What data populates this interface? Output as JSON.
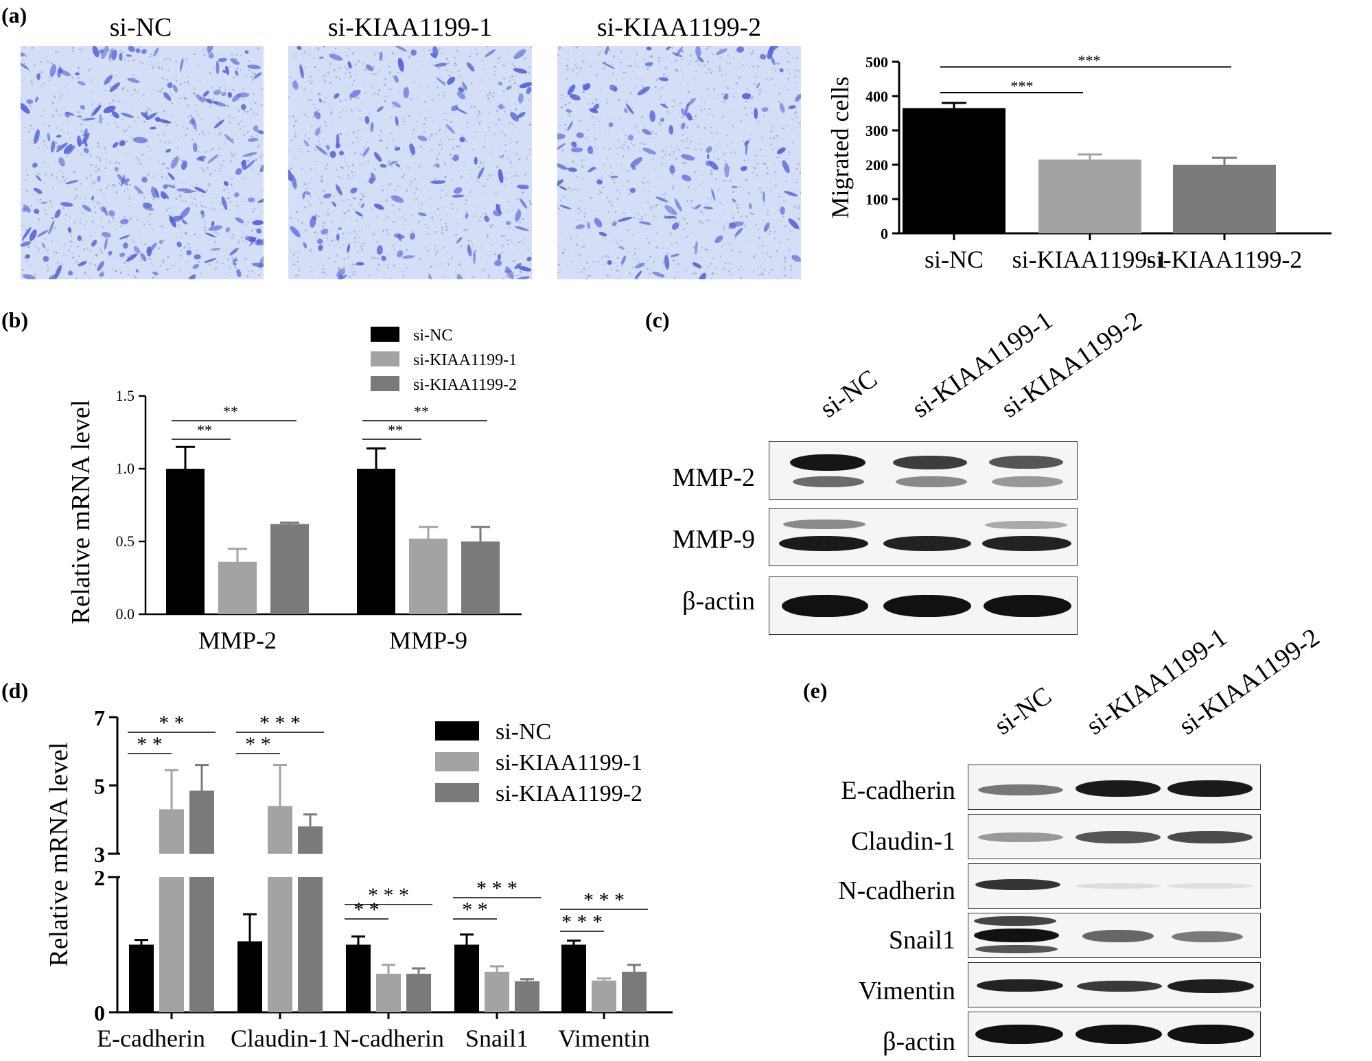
{
  "panel_labels": {
    "a": "(a)",
    "b": "(b)",
    "c": "(c)",
    "d": "(d)",
    "e": "(e)"
  },
  "groups": [
    "si-NC",
    "si-KIAA1199-1",
    "si-KIAA1199-2"
  ],
  "colors": {
    "si-NC": "#000000",
    "si-KIAA1199-1": "#a3a3a3",
    "si-KIAA1199-2": "#7a7a7a",
    "stain": "#5565d8"
  },
  "panel_a_images": [
    "si-NC",
    "si-KIAA1199-1",
    "si-KIAA1199-2"
  ],
  "chart_data": [
    {
      "id": "a",
      "type": "bar",
      "categories": [
        "si-NC",
        "si-KIAA1199-1",
        "si-KIAA1199-2"
      ],
      "values": [
        365,
        215,
        200
      ],
      "errors": [
        15,
        15,
        20
      ],
      "ylabel": "Migrated cells",
      "ylim": [
        0,
        500
      ],
      "yticks": [
        "0",
        "100",
        "200",
        "300",
        "400",
        "500"
      ],
      "significance": [
        {
          "from": "si-NC",
          "to": "si-KIAA1199-1",
          "label": "***"
        },
        {
          "from": "si-NC",
          "to": "si-KIAA1199-2",
          "label": "***"
        }
      ]
    },
    {
      "id": "b",
      "type": "bar",
      "categories": [
        "MMP-2",
        "MMP-9"
      ],
      "series": [
        {
          "name": "si-NC",
          "values": [
            1.0,
            1.0
          ],
          "errors": [
            0.15,
            0.14
          ]
        },
        {
          "name": "si-KIAA1199-1",
          "values": [
            0.36,
            0.52
          ],
          "errors": [
            0.09,
            0.08
          ]
        },
        {
          "name": "si-KIAA1199-2",
          "values": [
            0.62,
            0.5
          ],
          "errors": [
            0.01,
            0.1
          ]
        }
      ],
      "ylabel": "Relative mRNA level",
      "ylim": [
        0,
        1.5
      ],
      "yticks": [
        "0.0",
        "0.5",
        "1.0",
        "1.5"
      ],
      "significance": [
        {
          "category": "MMP-2",
          "from": "si-NC",
          "to": "si-KIAA1199-1",
          "label": "**"
        },
        {
          "category": "MMP-2",
          "from": "si-NC",
          "to": "si-KIAA1199-2",
          "label": "**"
        },
        {
          "category": "MMP-9",
          "from": "si-NC",
          "to": "si-KIAA1199-1",
          "label": "**"
        },
        {
          "category": "MMP-9",
          "from": "si-NC",
          "to": "si-KIAA1199-2",
          "label": "**"
        }
      ],
      "legend": "top-right"
    },
    {
      "id": "d",
      "type": "bar",
      "categories": [
        "E-cadherin",
        "Claudin-1",
        "N-cadherin",
        "Snail1",
        "Vimentin"
      ],
      "series": [
        {
          "name": "si-NC",
          "values": [
            1.0,
            1.05,
            1.0,
            1.0,
            1.0
          ],
          "errors": [
            0.07,
            0.4,
            0.12,
            0.15,
            0.06
          ]
        },
        {
          "name": "si-KIAA1199-1",
          "values": [
            4.3,
            4.4,
            0.57,
            0.6,
            0.47
          ],
          "errors": [
            1.15,
            1.2,
            0.13,
            0.08,
            0.03
          ]
        },
        {
          "name": "si-KIAA1199-2",
          "values": [
            4.85,
            3.8,
            0.57,
            0.46,
            0.6
          ],
          "errors": [
            0.75,
            0.35,
            0.08,
            0.03,
            0.1
          ]
        }
      ],
      "ylabel": "Relative mRNA level",
      "ylim": [
        0,
        7
      ],
      "axis_break": [
        2,
        3
      ],
      "yticks": [
        "0",
        "2",
        "3",
        "5",
        "7"
      ],
      "significance": [
        {
          "category": "E-cadherin",
          "from": "si-NC",
          "to": "si-KIAA1199-1",
          "label": "* *"
        },
        {
          "category": "E-cadherin",
          "from": "si-NC",
          "to": "si-KIAA1199-2",
          "label": "* *"
        },
        {
          "category": "Claudin-1",
          "from": "si-NC",
          "to": "si-KIAA1199-1",
          "label": "* *"
        },
        {
          "category": "Claudin-1",
          "from": "si-NC",
          "to": "si-KIAA1199-2",
          "label": "* * *"
        },
        {
          "category": "N-cadherin",
          "from": "si-NC",
          "to": "si-KIAA1199-1",
          "label": "* *"
        },
        {
          "category": "N-cadherin",
          "from": "si-NC",
          "to": "si-KIAA1199-2",
          "label": "* * *"
        },
        {
          "category": "Snail1",
          "from": "si-NC",
          "to": "si-KIAA1199-1",
          "label": "* *"
        },
        {
          "category": "Snail1",
          "from": "si-NC",
          "to": "si-KIAA1199-2",
          "label": "* * *"
        },
        {
          "category": "Vimentin",
          "from": "si-NC",
          "to": "si-KIAA1199-1",
          "label": "* * *"
        },
        {
          "category": "Vimentin",
          "from": "si-NC",
          "to": "si-KIAA1199-2",
          "label": "* * *"
        }
      ],
      "legend": "top-right"
    }
  ],
  "blot_c": {
    "lanes": [
      "si-NC",
      "si-KIAA1199-1",
      "si-KIAA1199-2"
    ],
    "rows": [
      {
        "label": "MMP-2",
        "intensity": [
          1.0,
          0.7,
          0.6
        ]
      },
      {
        "label": "MMP-9",
        "intensity": [
          0.95,
          0.9,
          0.9
        ]
      },
      {
        "label": "β-actin",
        "intensity": [
          1.0,
          1.0,
          1.0
        ]
      }
    ]
  },
  "blot_e": {
    "lanes": [
      "si-NC",
      "si-KIAA1199-1",
      "si-KIAA1199-2"
    ],
    "rows": [
      {
        "label": "E-cadherin",
        "intensity": [
          0.35,
          1.0,
          1.0
        ]
      },
      {
        "label": "Claudin-1",
        "intensity": [
          0.3,
          0.75,
          0.8
        ]
      },
      {
        "label": "N-cadherin",
        "intensity": [
          0.85,
          0.08,
          0.06
        ]
      },
      {
        "label": "Snail1",
        "intensity": [
          1.0,
          0.55,
          0.45
        ]
      },
      {
        "label": "Vimentin",
        "intensity": [
          0.95,
          0.8,
          0.95
        ]
      },
      {
        "label": "β-actin",
        "intensity": [
          1.0,
          1.0,
          1.0
        ]
      }
    ]
  }
}
